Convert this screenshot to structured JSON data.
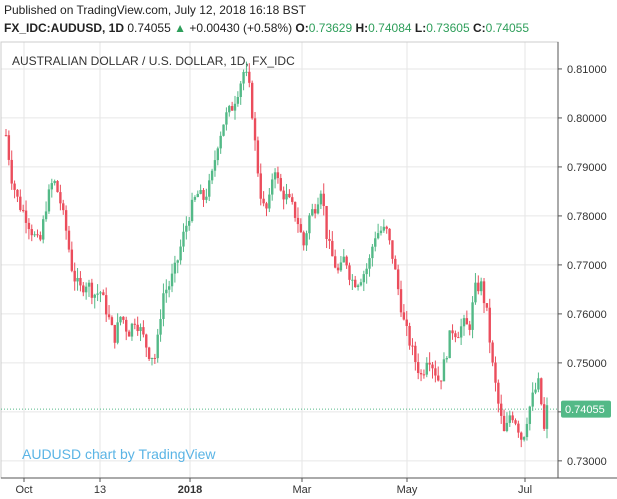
{
  "header": {
    "published": "Published on TradingView.com, July 12, 2018 16:18 BST",
    "symbol": "FX_IDC:AUDUSD, 1D",
    "last": "0.74055",
    "change_arrow": "▲",
    "change": "+0.00430 (+0.58%)",
    "o_label": "O:",
    "o_value": "0.73629",
    "h_label": "H:",
    "h_value": "0.74084",
    "l_label": "L:",
    "l_value": "0.73605",
    "c_label": "C:",
    "c_value": "0.74055"
  },
  "watermark": "AUDUSD chart by TradingView",
  "colors": {
    "up": "#53b987",
    "down": "#eb4d5c",
    "price_tag": "#53b987",
    "grid": "#e6e6e6",
    "axis": "#555555",
    "watermark": "#5ab4e5"
  },
  "chart_data": {
    "type": "candlestick",
    "title": "AUSTRALIAN DOLLAR / U.S. DOLLAR, 1D, FX_IDC",
    "x_ticks": [
      "Oct",
      "13",
      "2018",
      "Mar",
      "May",
      "Jul"
    ],
    "y_ticks": [
      "0.73000",
      "0.74000",
      "0.75000",
      "0.76000",
      "0.77000",
      "0.78000",
      "0.79000",
      "0.80000",
      "0.81000"
    ],
    "ylim": [
      0.7265,
      0.8155
    ],
    "last_price": 0.74055,
    "last_price_label": "0.74055",
    "grid": true,
    "close_path": [
      {
        "x": 0,
        "y": 0.7965
      },
      {
        "x": 6,
        "y": 0.7875
      },
      {
        "x": 13,
        "y": 0.7825
      },
      {
        "x": 20,
        "y": 0.78
      },
      {
        "x": 27,
        "y": 0.7765
      },
      {
        "x": 34,
        "y": 0.774
      },
      {
        "x": 41,
        "y": 0.7825
      },
      {
        "x": 48,
        "y": 0.7875
      },
      {
        "x": 54,
        "y": 0.784
      },
      {
        "x": 61,
        "y": 0.777
      },
      {
        "x": 68,
        "y": 0.768
      },
      {
        "x": 75,
        "y": 0.765
      },
      {
        "x": 82,
        "y": 0.7665
      },
      {
        "x": 89,
        "y": 0.764
      },
      {
        "x": 96,
        "y": 0.7645
      },
      {
        "x": 103,
        "y": 0.76
      },
      {
        "x": 110,
        "y": 0.755
      },
      {
        "x": 117,
        "y": 0.76
      },
      {
        "x": 124,
        "y": 0.756
      },
      {
        "x": 131,
        "y": 0.759
      },
      {
        "x": 138,
        "y": 0.756
      },
      {
        "x": 145,
        "y": 0.752
      },
      {
        "x": 152,
        "y": 0.751
      },
      {
        "x": 159,
        "y": 0.764
      },
      {
        "x": 166,
        "y": 0.766
      },
      {
        "x": 173,
        "y": 0.77
      },
      {
        "x": 180,
        "y": 0.776
      },
      {
        "x": 187,
        "y": 0.781
      },
      {
        "x": 194,
        "y": 0.7845
      },
      {
        "x": 201,
        "y": 0.7835
      },
      {
        "x": 208,
        "y": 0.787
      },
      {
        "x": 215,
        "y": 0.795
      },
      {
        "x": 222,
        "y": 0.8
      },
      {
        "x": 229,
        "y": 0.802
      },
      {
        "x": 236,
        "y": 0.806
      },
      {
        "x": 242,
        "y": 0.81
      },
      {
        "x": 248,
        "y": 0.805
      },
      {
        "x": 254,
        "y": 0.792
      },
      {
        "x": 260,
        "y": 0.782
      },
      {
        "x": 266,
        "y": 0.781
      },
      {
        "x": 272,
        "y": 0.791
      },
      {
        "x": 278,
        "y": 0.785
      },
      {
        "x": 284,
        "y": 0.784
      },
      {
        "x": 290,
        "y": 0.782
      },
      {
        "x": 296,
        "y": 0.779
      },
      {
        "x": 302,
        "y": 0.774
      },
      {
        "x": 308,
        "y": 0.78
      },
      {
        "x": 314,
        "y": 0.782
      },
      {
        "x": 320,
        "y": 0.786
      },
      {
        "x": 326,
        "y": 0.775
      },
      {
        "x": 332,
        "y": 0.771
      },
      {
        "x": 338,
        "y": 0.768
      },
      {
        "x": 344,
        "y": 0.772
      },
      {
        "x": 350,
        "y": 0.767
      },
      {
        "x": 356,
        "y": 0.7665
      },
      {
        "x": 362,
        "y": 0.768
      },
      {
        "x": 368,
        "y": 0.77
      },
      {
        "x": 374,
        "y": 0.776
      },
      {
        "x": 380,
        "y": 0.777
      },
      {
        "x": 386,
        "y": 0.777
      },
      {
        "x": 392,
        "y": 0.772
      },
      {
        "x": 398,
        "y": 0.765
      },
      {
        "x": 404,
        "y": 0.758
      },
      {
        "x": 410,
        "y": 0.754
      },
      {
        "x": 416,
        "y": 0.75
      },
      {
        "x": 422,
        "y": 0.747
      },
      {
        "x": 428,
        "y": 0.752
      },
      {
        "x": 434,
        "y": 0.749
      },
      {
        "x": 440,
        "y": 0.746
      },
      {
        "x": 446,
        "y": 0.751
      },
      {
        "x": 452,
        "y": 0.757
      },
      {
        "x": 458,
        "y": 0.756
      },
      {
        "x": 464,
        "y": 0.758
      },
      {
        "x": 470,
        "y": 0.757
      },
      {
        "x": 476,
        "y": 0.765
      },
      {
        "x": 482,
        "y": 0.766
      },
      {
        "x": 488,
        "y": 0.76
      },
      {
        "x": 494,
        "y": 0.749
      },
      {
        "x": 500,
        "y": 0.741
      },
      {
        "x": 506,
        "y": 0.735
      },
      {
        "x": 512,
        "y": 0.74
      },
      {
        "x": 518,
        "y": 0.738
      },
      {
        "x": 524,
        "y": 0.734
      },
      {
        "x": 530,
        "y": 0.74
      },
      {
        "x": 536,
        "y": 0.744
      },
      {
        "x": 541,
        "y": 0.746
      },
      {
        "x": 546,
        "y": 0.736
      },
      {
        "x": 549,
        "y": 0.74055
      }
    ]
  }
}
